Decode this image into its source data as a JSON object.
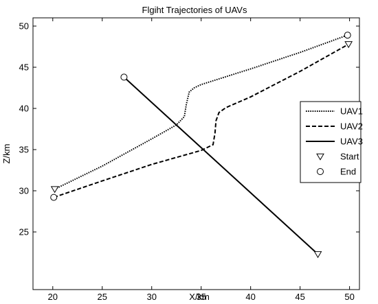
{
  "chart_data": {
    "type": "line",
    "title": "Flgiht Trajectories of UAVs",
    "xlabel": "X/km",
    "ylabel": "Z/km",
    "xlim": [
      18,
      51
    ],
    "ylim": [
      18,
      51
    ],
    "xticks": [
      20,
      25,
      30,
      35,
      40,
      45,
      50
    ],
    "yticks": [
      25,
      30,
      35,
      40,
      45,
      50
    ],
    "grid": false,
    "legend_position": "right",
    "series": [
      {
        "name": "UAV1",
        "style": "dotted",
        "color": "#000000",
        "x": [
          20.2,
          25.0,
          30.0,
          32.5,
          33.3,
          33.5,
          33.8,
          34.3,
          35.0,
          40.0,
          45.0,
          49.8
        ],
        "y": [
          30.2,
          33.0,
          36.3,
          38.0,
          39.0,
          40.5,
          42.0,
          42.5,
          42.9,
          44.8,
          46.8,
          48.9
        ]
      },
      {
        "name": "UAV2",
        "style": "dashed",
        "color": "#000000",
        "x": [
          20.1,
          25.0,
          30.0,
          35.0,
          36.2,
          36.4,
          36.5,
          36.8,
          37.5,
          40.0,
          45.0,
          49.9
        ],
        "y": [
          29.2,
          31.2,
          33.2,
          34.9,
          35.6,
          37.0,
          38.5,
          39.5,
          40.1,
          41.4,
          44.5,
          47.8
        ]
      },
      {
        "name": "UAV3",
        "style": "solid",
        "color": "#000000",
        "x": [
          27.2,
          46.8
        ],
        "y": [
          43.8,
          22.3
        ]
      }
    ],
    "markers": [
      {
        "name": "Start",
        "shape": "triangle-down",
        "points": [
          [
            20.2,
            30.2
          ],
          [
            49.9,
            47.8
          ],
          [
            46.8,
            22.3
          ]
        ]
      },
      {
        "name": "End",
        "shape": "circle",
        "points": [
          [
            20.1,
            29.2
          ],
          [
            49.8,
            48.9
          ],
          [
            27.2,
            43.8
          ]
        ]
      }
    ],
    "legend": [
      {
        "label": "UAV1",
        "kind": "dotted"
      },
      {
        "label": "UAV2",
        "kind": "dashed"
      },
      {
        "label": "UAV3",
        "kind": "solid"
      },
      {
        "label": "Start",
        "kind": "triangle-down"
      },
      {
        "label": "End",
        "kind": "circle"
      }
    ]
  }
}
